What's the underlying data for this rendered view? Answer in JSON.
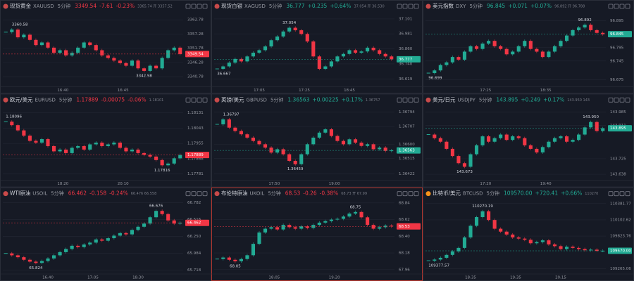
{
  "panels": [
    {
      "name": "现货黄金",
      "code": "XAUUSD",
      "interval": "5分钟",
      "price": "3349.54",
      "change": "-7.61",
      "pct": "-0.23%",
      "quote": "3365.74 开 3357.52",
      "ylim": [
        3338,
        3365
      ],
      "yticks": [
        3362.78,
        3357.28,
        3351.78,
        3346.28,
        3340.78
      ],
      "high": 3360.58,
      "low": 3342.98,
      "times": [
        "16:40",
        "16:45"
      ],
      "values": [
        3358,
        3359,
        3356,
        3357,
        3355,
        3353,
        3354,
        3352,
        3350,
        3351,
        3349,
        3350,
        3352,
        3354,
        3353,
        3351,
        3349,
        3348,
        3347,
        3346,
        3345,
        3347,
        3344,
        3343,
        3345,
        3344,
        3348,
        3351,
        3352,
        3349.54
      ]
    },
    {
      "name": "现货白银",
      "code": "XAGUSD",
      "interval": "5分钟",
      "price": "36.777",
      "change": "+0.235",
      "pct": "+0.64%",
      "quote": "37.054 开 36.530",
      "ylim": [
        36.58,
        37.14
      ],
      "yticks": [
        37.101,
        36.981,
        {
          "value": 36.86,
          "label": "36.860"
        },
        {
          "value": 36.74,
          "label": "36.740"
        },
        36.619
      ],
      "high": 37.054,
      "low": 36.667,
      "times": [
        "17:05",
        "17:25",
        "18:45"
      ],
      "values": [
        36.7,
        36.72,
        36.75,
        36.78,
        36.76,
        36.8,
        36.83,
        36.85,
        36.88,
        36.93,
        36.96,
        37.0,
        37.03,
        37.01,
        36.98,
        36.92,
        36.8,
        36.7,
        36.72,
        36.76,
        36.8,
        36.82,
        36.85,
        36.83,
        36.84,
        36.87,
        36.85,
        36.82,
        36.8,
        36.777
      ]
    },
    {
      "name": "美元指数",
      "code": "DXY",
      "interval": "5分钟",
      "price": "96.845",
      "change": "+0.071",
      "pct": "+0.07%",
      "quote": "96.892 开 96.788",
      "ylim": [
        96.66,
        96.92
      ],
      "yticks": [
        96.895,
        96.795,
        96.745,
        96.675
      ],
      "high": 96.892,
      "low": 96.699,
      "times": [
        "17:25",
        "18:35"
      ],
      "values": [
        96.7,
        96.71,
        96.73,
        96.74,
        96.76,
        96.75,
        96.78,
        96.8,
        96.79,
        96.81,
        96.82,
        96.8,
        96.79,
        96.77,
        96.78,
        96.8,
        96.82,
        96.79,
        96.78,
        96.76,
        96.78,
        96.8,
        96.82,
        96.84,
        96.86,
        96.87,
        96.88,
        96.86,
        96.85,
        96.845
      ]
    },
    {
      "name": "欧元/美元",
      "code": "EURUSD",
      "interval": "5分钟",
      "price": "1.17889",
      "change": "-0.00075",
      "pct": "-0.06%",
      "quote": "1.18101",
      "ylim": [
        1.1776,
        1.1816
      ],
      "yticks": [
        1.18131,
        1.18043,
        1.17955,
        1.17868,
        1.17781
      ],
      "high": 1.18096,
      "low": 1.17816,
      "times": [
        "18:20",
        "20:10"
      ],
      "values": [
        1.1808,
        1.1806,
        1.1803,
        1.18,
        1.1797,
        1.1796,
        1.1798,
        1.1794,
        1.1791,
        1.1792,
        1.179,
        1.1793,
        1.1794,
        1.1792,
        1.1795,
        1.1796,
        1.1794,
        1.1795,
        1.1796,
        1.1793,
        1.1791,
        1.1792,
        1.179,
        1.1789,
        1.1788,
        1.1786,
        1.1783,
        1.1784,
        1.1787,
        1.17889
      ]
    },
    {
      "name": "英镑/美元",
      "code": "GBPUSD",
      "interval": "5分钟",
      "price": "1.36563",
      "change": "+0.00225",
      "pct": "+0.17%",
      "quote": "1.36757",
      "ylim": [
        1.364,
        1.3682
      ],
      "yticks": [
        1.36794,
        1.36707,
        {
          "value": 1.366,
          "label": "1.36600"
        },
        1.36515,
        1.36422
      ],
      "high": 1.36797,
      "low": 1.36459,
      "times": [
        "17:50",
        "19:00"
      ],
      "values": [
        1.3672,
        1.3675,
        1.367,
        1.3668,
        1.3666,
        1.3664,
        1.3662,
        1.366,
        1.3658,
        1.3655,
        1.3657,
        1.3654,
        1.365,
        1.3648,
        1.3654,
        1.366,
        1.3664,
        1.3667,
        1.3669,
        1.3665,
        1.3662,
        1.366,
        1.3663,
        1.3661,
        1.3659,
        1.366,
        1.3657,
        1.3658,
        1.3656,
        1.36563
      ]
    },
    {
      "name": "美元/日元",
      "code": "USDJPY",
      "interval": "5分钟",
      "price": "143.895",
      "change": "+0.249",
      "pct": "+0.17%",
      "quote": "143.950 143",
      "ylim": [
        143.62,
        144.01
      ],
      "yticks": [
        143.985,
        143.911,
        143.725,
        143.638
      ],
      "high": {
        "value": 143.95,
        "label": "143.950"
      },
      "low": 143.673,
      "times": [
        "17:20",
        "19:40"
      ],
      "values": [
        143.86,
        143.84,
        143.82,
        143.78,
        143.74,
        143.7,
        143.68,
        143.75,
        143.8,
        143.85,
        143.82,
        143.84,
        143.86,
        143.83,
        143.85,
        143.84,
        143.8,
        143.78,
        143.76,
        143.79,
        143.82,
        143.84,
        143.85,
        143.82,
        143.83,
        143.86,
        143.9,
        143.93,
        143.88,
        143.895
      ]
    },
    {
      "name": "WTI原油",
      "code": "USOIL",
      "interval": "5分钟",
      "price": "66.462",
      "change": "-0.158",
      "pct": "-0.24%",
      "quote": "66.476 66.558",
      "ylim": [
        65.7,
        66.8
      ],
      "yticks": [
        66.782,
        66.516,
        {
          "value": 66.25,
          "label": "66.250"
        },
        65.984,
        65.718
      ],
      "high": 66.676,
      "low": 65.824,
      "times": [
        "16:40",
        "17:05",
        "18:30"
      ],
      "values": [
        65.98,
        65.95,
        65.92,
        65.88,
        65.85,
        65.83,
        65.86,
        65.9,
        65.95,
        66.0,
        66.05,
        66.1,
        66.08,
        66.12,
        66.15,
        66.2,
        66.18,
        66.22,
        66.26,
        66.3,
        66.28,
        66.35,
        66.4,
        66.45,
        66.55,
        66.65,
        66.6,
        66.5,
        66.45,
        66.462
      ]
    },
    {
      "name": "布伦特原油",
      "code": "UKOIL",
      "interval": "5分钟",
      "price": "68.53",
      "change": "-0.26",
      "pct": "-0.38%",
      "quote": "68.73 开 67.99",
      "selected": true,
      "ylim": [
        67.94,
        68.86
      ],
      "yticks": [
        68.84,
        68.62,
        {
          "value": 68.4,
          "label": "68.40"
        },
        68.18,
        67.96
      ],
      "high": 68.75,
      "low": 68.05,
      "times": [
        "18:05",
        "19:20"
      ],
      "values": [
        68.1,
        68.12,
        68.09,
        68.07,
        68.1,
        68.15,
        68.3,
        68.45,
        68.5,
        68.52,
        68.49,
        68.55,
        68.52,
        68.5,
        68.53,
        68.51,
        68.55,
        68.58,
        68.6,
        68.62,
        68.63,
        68.66,
        68.7,
        68.72,
        68.65,
        68.55,
        68.5,
        68.52,
        68.54,
        68.53
      ]
    },
    {
      "name": "比特币/美元",
      "code": "BTCUSD",
      "interval": "5分钟",
      "price": "109570.00",
      "change": "+720.41",
      "pct": "+0.66%",
      "quote": "110270",
      "ylim": [
        109220,
        110420
      ],
      "yticks": [
        110381.77,
        110102.62,
        109823.76,
        109265.06
      ],
      "high": 110270.19,
      "low": 109377.57,
      "times": [
        "18:35",
        "19:35",
        "20:15"
      ],
      "values": [
        109400,
        109420,
        109450,
        109500,
        109560,
        109620,
        109800,
        110000,
        110150,
        110250,
        110100,
        109950,
        109900,
        109850,
        109800,
        109780,
        109760,
        109700,
        109720,
        109750,
        109680,
        109650,
        109600,
        109640,
        109620,
        109600,
        109580,
        109590,
        109570,
        109570
      ]
    }
  ]
}
